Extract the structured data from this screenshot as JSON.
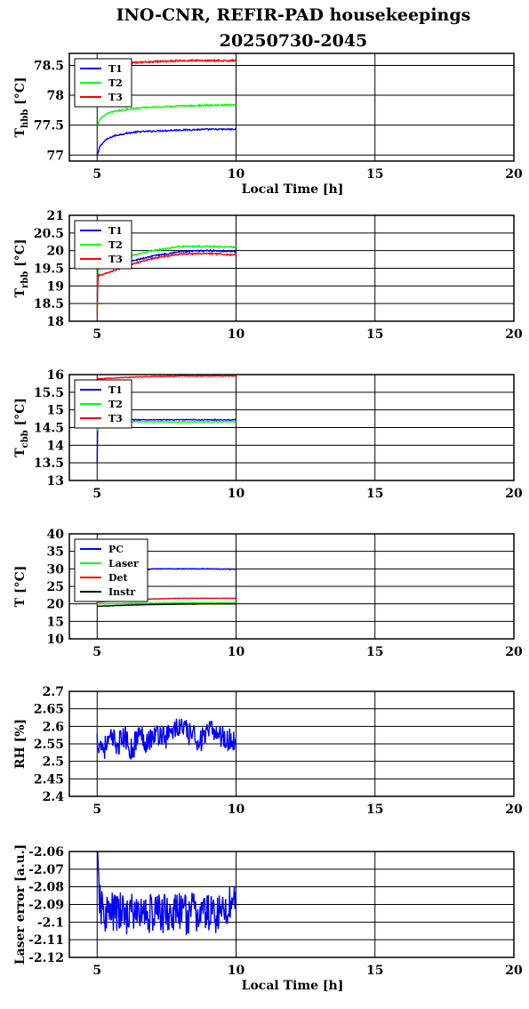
{
  "title_line1": "INO-CNR, REFIR-PAD housekeepings",
  "title_line2": "20250730-2045",
  "chart_data": [
    {
      "type": "line",
      "ylabel_main": "T",
      "ylabel_sub": "hbb",
      "ylabel_unit": "[°C]",
      "xlabel": "Local Time [h]",
      "xlim": [
        4,
        20
      ],
      "ylim": [
        76.9,
        78.7
      ],
      "xticks": [
        "5",
        "10",
        "15",
        "20"
      ],
      "yticks": [
        "77",
        "77.5",
        "78",
        "78.5"
      ],
      "legend": [
        "T1",
        "T2",
        "T3"
      ],
      "series": [
        {
          "name": "T1",
          "color": "#0000ff",
          "x": [
            5.0,
            5.1,
            5.3,
            5.6,
            6.0,
            6.5,
            7.0,
            8.0,
            9.0,
            10.0
          ],
          "y": [
            76.98,
            77.15,
            77.25,
            77.32,
            77.36,
            77.39,
            77.4,
            77.42,
            77.43,
            77.43
          ],
          "noise": 0.012
        },
        {
          "name": "T2",
          "color": "#00ff00",
          "x": [
            5.0,
            5.1,
            5.3,
            5.6,
            6.0,
            6.5,
            7.0,
            8.0,
            9.0,
            10.0
          ],
          "y": [
            77.5,
            77.6,
            77.68,
            77.73,
            77.76,
            77.79,
            77.8,
            77.82,
            77.83,
            77.84
          ],
          "noise": 0.012
        },
        {
          "name": "T3",
          "color": "#ff0000",
          "x": [
            5.0,
            6.0,
            7.0,
            8.0,
            9.0,
            10.0
          ],
          "y": [
            78.5,
            78.54,
            78.56,
            78.58,
            78.58,
            78.58
          ],
          "noise": 0.014
        }
      ]
    },
    {
      "type": "line",
      "ylabel_main": "T",
      "ylabel_sub": "rbb",
      "ylabel_unit": "[°C]",
      "xlabel": "",
      "xlim": [
        4,
        20
      ],
      "ylim": [
        18,
        21
      ],
      "xticks": [
        "5",
        "10",
        "15",
        "20"
      ],
      "yticks": [
        "18",
        "18.5",
        "19",
        "19.5",
        "20",
        "20.5",
        "21"
      ],
      "legend": [
        "T1",
        "T2",
        "T3"
      ],
      "series": [
        {
          "name": "T1",
          "color": "#0000ff",
          "x": [
            5.0,
            5.03,
            5.2,
            6.0,
            7.0,
            8.0,
            9.0,
            10.0
          ],
          "y": [
            18.4,
            19.5,
            19.5,
            19.65,
            19.85,
            19.97,
            20.0,
            19.98
          ],
          "noise": 0.02
        },
        {
          "name": "T2",
          "color": "#00ff00",
          "x": [
            5.0,
            5.03,
            5.2,
            6.0,
            7.0,
            8.0,
            9.0,
            10.0
          ],
          "y": [
            18.3,
            19.55,
            19.6,
            19.8,
            20.0,
            20.12,
            20.12,
            20.1
          ],
          "noise": 0.02
        },
        {
          "name": "T3",
          "color": "#ff0000",
          "x": [
            5.0,
            5.03,
            5.2,
            6.0,
            7.0,
            8.0,
            9.0,
            10.0
          ],
          "y": [
            18.2,
            19.3,
            19.32,
            19.55,
            19.78,
            19.9,
            19.92,
            19.88
          ],
          "noise": 0.02
        }
      ]
    },
    {
      "type": "line",
      "ylabel_main": "T",
      "ylabel_sub": "cbb",
      "ylabel_unit": "[°C]",
      "xlabel": "",
      "xlim": [
        4,
        20
      ],
      "ylim": [
        13,
        16
      ],
      "xticks": [
        "5",
        "10",
        "15",
        "20"
      ],
      "yticks": [
        "13",
        "13.5",
        "14",
        "14.5",
        "15",
        "15.5",
        "16"
      ],
      "legend": [
        "T1",
        "T2",
        "T3"
      ],
      "series": [
        {
          "name": "T1",
          "color": "#0000ff",
          "x": [
            5.0,
            5.02,
            5.1,
            6.0,
            7.0,
            8.0,
            9.0,
            10.0
          ],
          "y": [
            13.5,
            14.6,
            14.72,
            14.72,
            14.72,
            14.72,
            14.72,
            14.72
          ],
          "noise": 0.012
        },
        {
          "name": "T2",
          "color": "#00ff00",
          "x": [
            5.0,
            5.02,
            5.1,
            6.0,
            7.0,
            8.0,
            9.0,
            10.0
          ],
          "y": [
            14.4,
            14.65,
            14.68,
            14.67,
            14.66,
            14.66,
            14.66,
            14.66
          ],
          "noise": 0.012
        },
        {
          "name": "T3",
          "color": "#ff0000",
          "x": [
            5.0,
            6.0,
            7.0,
            8.0,
            9.0,
            10.0
          ],
          "y": [
            15.88,
            15.92,
            15.94,
            15.96,
            15.96,
            15.96
          ],
          "noise": 0.01
        }
      ]
    },
    {
      "type": "line",
      "ylabel_main": "T",
      "ylabel_sub": "",
      "ylabel_unit": "[°C]",
      "xlabel": "",
      "xlim": [
        4,
        20
      ],
      "ylim": [
        10,
        40
      ],
      "xticks": [
        "5",
        "10",
        "15",
        "20"
      ],
      "yticks": [
        "10",
        "15",
        "20",
        "25",
        "30",
        "35",
        "40"
      ],
      "legend": [
        "PC",
        "Laser",
        "Det",
        "Instr"
      ],
      "series": [
        {
          "name": "PC",
          "color": "#0000ff",
          "x": [
            5.0,
            5.3,
            5.8,
            6.5,
            7.0,
            8.0,
            9.0,
            10.0
          ],
          "y": [
            20.5,
            23.0,
            26.5,
            29.2,
            30.0,
            30.0,
            30.0,
            29.9
          ],
          "noise": 0.08
        },
        {
          "name": "Laser",
          "color": "#00ff00",
          "x": [
            5.0,
            6.0,
            7.0,
            8.0,
            9.0,
            10.0
          ],
          "y": [
            20.0,
            20.1,
            20.2,
            20.3,
            20.3,
            20.3
          ],
          "noise": 0.05
        },
        {
          "name": "Det",
          "color": "#ff0000",
          "x": [
            5.0,
            6.0,
            7.0,
            8.0,
            9.0,
            10.0
          ],
          "y": [
            20.5,
            21.0,
            21.4,
            21.6,
            21.6,
            21.6
          ],
          "noise": 0.05
        },
        {
          "name": "Instr",
          "color": "#000000",
          "x": [
            5.0,
            6.0,
            7.0,
            8.0,
            9.0,
            10.0
          ],
          "y": [
            19.3,
            19.6,
            19.8,
            19.9,
            20.0,
            20.0
          ],
          "noise": 0.03
        }
      ]
    },
    {
      "type": "line",
      "ylabel_main": "RH [%]",
      "ylabel_sub": "",
      "ylabel_unit": "",
      "xlabel": "",
      "xlim": [
        4,
        20
      ],
      "ylim": [
        2.4,
        2.7
      ],
      "xticks": [
        "5",
        "10",
        "15",
        "20"
      ],
      "yticks": [
        "2.4",
        "2.45",
        "2.5",
        "2.55",
        "2.6",
        "2.65",
        "2.7"
      ],
      "legend": [],
      "series": [
        {
          "name": "",
          "color": "#0000ff",
          "x": [
            5.0,
            5.25,
            5.5,
            5.75,
            6.0,
            6.25,
            6.5,
            6.75,
            7.0,
            7.25,
            7.5,
            7.75,
            8.0,
            8.25,
            8.5,
            8.75,
            9.0,
            9.25,
            9.5,
            9.75,
            10.0
          ],
          "y": [
            2.56,
            2.54,
            2.56,
            2.55,
            2.57,
            2.53,
            2.58,
            2.56,
            2.57,
            2.58,
            2.57,
            2.59,
            2.6,
            2.58,
            2.57,
            2.56,
            2.58,
            2.59,
            2.57,
            2.56,
            2.56
          ],
          "noise": 0.035
        }
      ]
    },
    {
      "type": "line",
      "ylabel_main": "Laser error [a.u.]",
      "ylabel_sub": "",
      "ylabel_unit": "",
      "xlabel": "Local Time [h]",
      "xlim": [
        4,
        20
      ],
      "ylim": [
        -2.12,
        -2.06
      ],
      "xticks": [
        "5",
        "10",
        "15",
        "20"
      ],
      "yticks": [
        "-2.12",
        "-2.11",
        "-2.1",
        "-2.09",
        "-2.08",
        "-2.07",
        "-2.06"
      ],
      "legend": [],
      "series": [
        {
          "name": "",
          "color": "#0000ff",
          "x": [
            5.0,
            5.05,
            5.1,
            5.2,
            5.5,
            6.0,
            6.5,
            7.0,
            7.5,
            8.0,
            8.5,
            9.0,
            9.5,
            10.0
          ],
          "y": [
            -2.062,
            -2.075,
            -2.09,
            -2.095,
            -2.095,
            -2.095,
            -2.095,
            -2.095,
            -2.095,
            -2.095,
            -2.095,
            -2.095,
            -2.095,
            -2.085
          ],
          "noise": 0.012
        }
      ]
    }
  ]
}
